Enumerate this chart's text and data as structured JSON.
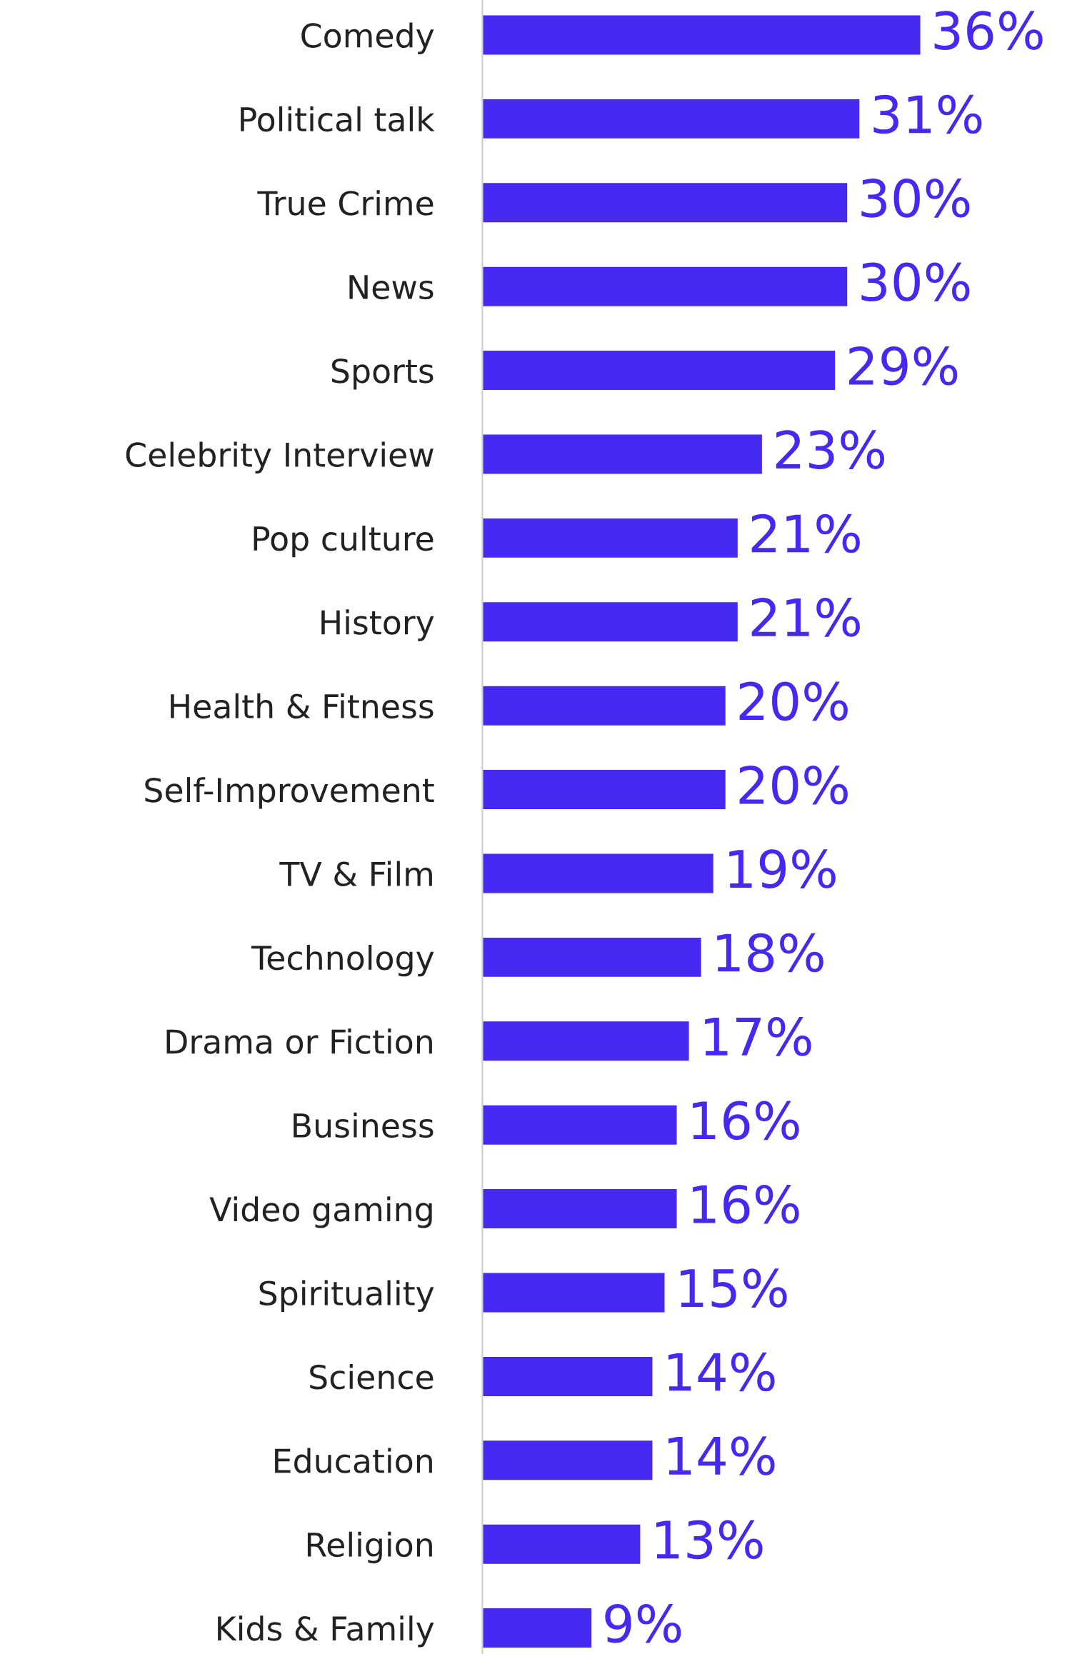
{
  "chart_data": {
    "type": "bar",
    "orientation": "horizontal",
    "categories": [
      "Comedy",
      "Political talk",
      "True Crime",
      "News",
      "Sports",
      "Celebrity Interview",
      "Pop culture",
      "History",
      "Health & Fitness",
      "Self-Improvement",
      "TV & Film",
      "Technology",
      "Drama or Fiction",
      "Business",
      "Video gaming",
      "Spirituality",
      "Science",
      "Education",
      "Religion",
      "Kids & Family"
    ],
    "values": [
      36,
      31,
      30,
      30,
      29,
      23,
      21,
      21,
      20,
      20,
      19,
      18,
      17,
      16,
      16,
      15,
      14,
      14,
      13,
      9
    ],
    "color": "#4629f0",
    "value_labels": [
      "36%",
      "31%",
      "30%",
      "30%",
      "29%",
      "23%",
      "21%",
      "21%",
      "20%",
      "20%",
      "19%",
      "18%",
      "17%",
      "16%",
      "16%",
      "15%",
      "14%",
      "14%",
      "13%",
      "9%"
    ],
    "grid": false,
    "tick_labels": "y"
  }
}
